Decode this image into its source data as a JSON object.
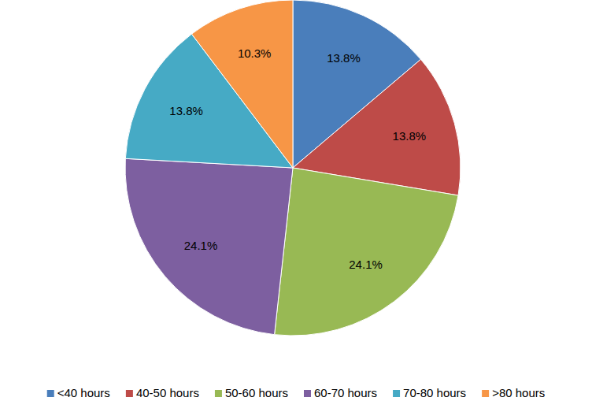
{
  "chart_data": {
    "type": "pie",
    "categories": [
      "<40 hours",
      "40-50 hours",
      "50-60 hours",
      "60-70 hours",
      "70-80 hours",
      ">80 hours"
    ],
    "values": [
      13.8,
      13.8,
      24.1,
      24.1,
      13.8,
      10.3
    ],
    "value_labels": [
      "13.8%",
      "13.8%",
      "24.1%",
      "24.1%",
      "13.8%",
      "10.3%"
    ],
    "colors": [
      "#4a7ebb",
      "#be4b48",
      "#98b954",
      "#7d5fa0",
      "#46aac5",
      "#f79646"
    ],
    "data_labels": true,
    "legend": "bottom"
  }
}
